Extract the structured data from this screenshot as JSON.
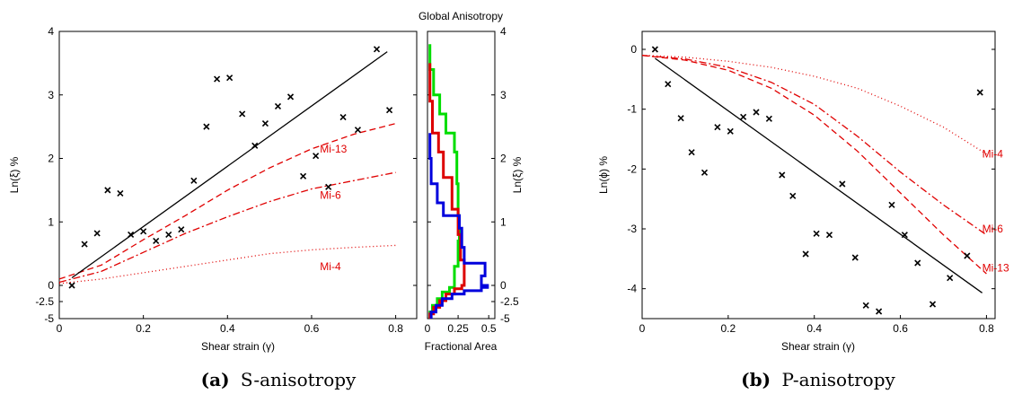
{
  "captions": {
    "a": {
      "letter": "(a)",
      "text": "S-anisotropy"
    },
    "b": {
      "letter": "(b)",
      "text": "P-anisotropy"
    }
  },
  "chart_data": [
    {
      "id": "s-anisotropy",
      "type": "scatter",
      "title": "",
      "xlabel": "Shear strain (γ)",
      "ylabel": "Ln(ξ) %",
      "xlim": [
        0,
        0.85
      ],
      "ylim_upper": [
        0,
        4
      ],
      "ylim_lower": [
        -5,
        -2.5
      ],
      "xticks": [
        0,
        0.2,
        0.4,
        0.6,
        0.8
      ],
      "xtick_labels": [
        "0",
        "0.2",
        "0.4",
        "0.6",
        "0.8"
      ],
      "yticks": [
        0,
        1,
        2,
        3,
        4
      ],
      "ytick_labels": [
        "0",
        "1",
        "2",
        "3",
        "4"
      ],
      "ylower_tick_labels": [
        "-2.5",
        "-5"
      ],
      "grid": false,
      "points": {
        "x": [
          0.03,
          0.06,
          0.09,
          0.115,
          0.145,
          0.17,
          0.2,
          0.23,
          0.26,
          0.29,
          0.32,
          0.35,
          0.375,
          0.405,
          0.435,
          0.465,
          0.49,
          0.52,
          0.55,
          0.58,
          0.61,
          0.64,
          0.675,
          0.71,
          0.755,
          0.785
        ],
        "y": [
          0.0,
          0.65,
          0.82,
          1.5,
          1.45,
          0.8,
          0.85,
          0.7,
          0.8,
          0.88,
          1.65,
          2.5,
          3.25,
          3.27,
          2.7,
          2.2,
          2.55,
          2.82,
          2.97,
          1.72,
          2.04,
          1.55,
          2.65,
          2.45,
          3.72,
          2.76
        ]
      },
      "fit_line": {
        "x": [
          0.03,
          0.78
        ],
        "y": [
          0.12,
          3.68
        ]
      },
      "series": [
        {
          "name": "Mi-13",
          "style": "dashed",
          "x": [
            0.0,
            0.1,
            0.2,
            0.3,
            0.4,
            0.5,
            0.6,
            0.7,
            0.8
          ],
          "y": [
            0.1,
            0.32,
            0.72,
            1.1,
            1.5,
            1.85,
            2.15,
            2.38,
            2.55
          ],
          "label_at": [
            0.62,
            2.15
          ]
        },
        {
          "name": "Mi-6",
          "style": "dashdot",
          "x": [
            0.0,
            0.1,
            0.2,
            0.3,
            0.4,
            0.5,
            0.6,
            0.7,
            0.8
          ],
          "y": [
            0.05,
            0.22,
            0.52,
            0.82,
            1.08,
            1.32,
            1.52,
            1.65,
            1.78
          ],
          "label_at": [
            0.62,
            1.42
          ]
        },
        {
          "name": "Mi-4",
          "style": "dotted",
          "x": [
            0.0,
            0.1,
            0.2,
            0.3,
            0.4,
            0.5,
            0.6,
            0.7,
            0.8
          ],
          "y": [
            0.03,
            0.1,
            0.2,
            0.3,
            0.4,
            0.5,
            0.56,
            0.6,
            0.63
          ],
          "label_at": [
            0.62,
            0.3
          ]
        }
      ]
    },
    {
      "id": "global-anisotropy",
      "type": "line",
      "title": "Global Anisotropy",
      "xlabel": "Fractional Area",
      "ylabel": "Ln(ξ) %",
      "xlim": [
        0,
        0.55
      ],
      "ylim_upper": [
        0,
        4
      ],
      "ylim_lower": [
        -5,
        -2.5
      ],
      "xticks": [
        0,
        0.25,
        0.5
      ],
      "xtick_labels": [
        "0",
        "0.25",
        "0.5"
      ],
      "yticks": [
        0,
        1,
        2,
        3,
        4
      ],
      "ytick_labels": [
        "0",
        "1",
        "2",
        "3",
        "4"
      ],
      "ylower_tick_labels": [
        "-2.5",
        "-5"
      ],
      "series": [
        {
          "color": "#00dd00",
          "points": [
            [
              0.02,
              3.8
            ],
            [
              0.02,
              3.4
            ],
            [
              0.05,
              3.4
            ],
            [
              0.05,
              3.0
            ],
            [
              0.1,
              3.0
            ],
            [
              0.1,
              2.7
            ],
            [
              0.15,
              2.7
            ],
            [
              0.15,
              2.4
            ],
            [
              0.22,
              2.4
            ],
            [
              0.22,
              2.1
            ],
            [
              0.24,
              2.1
            ],
            [
              0.24,
              1.6
            ],
            [
              0.25,
              1.6
            ],
            [
              0.25,
              1.1
            ],
            [
              0.26,
              1.1
            ],
            [
              0.26,
              0.7
            ],
            [
              0.25,
              0.7
            ],
            [
              0.25,
              0.3
            ],
            [
              0.22,
              0.3
            ],
            [
              0.22,
              -0.3
            ],
            [
              0.18,
              -0.3
            ],
            [
              0.18,
              -1.0
            ],
            [
              0.12,
              -1.0
            ],
            [
              0.12,
              -2.0
            ],
            [
              0.08,
              -2.0
            ],
            [
              0.08,
              -3.0
            ],
            [
              0.04,
              -3.0
            ],
            [
              0.04,
              -4.0
            ],
            [
              0.02,
              -4.0
            ],
            [
              0.02,
              -5.0
            ]
          ]
        },
        {
          "color": "#dd0000",
          "points": [
            [
              0.02,
              3.5
            ],
            [
              0.02,
              2.9
            ],
            [
              0.04,
              2.9
            ],
            [
              0.04,
              2.4
            ],
            [
              0.09,
              2.4
            ],
            [
              0.09,
              2.1
            ],
            [
              0.13,
              2.1
            ],
            [
              0.13,
              1.7
            ],
            [
              0.2,
              1.7
            ],
            [
              0.2,
              1.2
            ],
            [
              0.25,
              1.2
            ],
            [
              0.25,
              0.8
            ],
            [
              0.27,
              0.8
            ],
            [
              0.27,
              0.4
            ],
            [
              0.3,
              0.4
            ],
            [
              0.3,
              0.0
            ],
            [
              0.28,
              0.0
            ],
            [
              0.28,
              -0.5
            ],
            [
              0.22,
              -0.5
            ],
            [
              0.22,
              -1.3
            ],
            [
              0.15,
              -1.3
            ],
            [
              0.15,
              -2.3
            ],
            [
              0.1,
              -2.3
            ],
            [
              0.1,
              -3.3
            ],
            [
              0.05,
              -3.3
            ],
            [
              0.05,
              -4.3
            ],
            [
              0.02,
              -4.3
            ],
            [
              0.02,
              -5.0
            ]
          ]
        },
        {
          "color": "#0000dd",
          "points": [
            [
              0.02,
              2.4
            ],
            [
              0.02,
              2.0
            ],
            [
              0.03,
              2.0
            ],
            [
              0.03,
              1.6
            ],
            [
              0.08,
              1.6
            ],
            [
              0.08,
              1.3
            ],
            [
              0.13,
              1.3
            ],
            [
              0.13,
              1.1
            ],
            [
              0.26,
              1.1
            ],
            [
              0.26,
              0.9
            ],
            [
              0.28,
              0.9
            ],
            [
              0.28,
              0.6
            ],
            [
              0.3,
              0.6
            ],
            [
              0.3,
              0.35
            ],
            [
              0.47,
              0.35
            ],
            [
              0.47,
              0.15
            ],
            [
              0.44,
              0.15
            ],
            [
              0.44,
              0.0
            ],
            [
              0.49,
              0.0
            ],
            [
              0.49,
              -0.3
            ],
            [
              0.44,
              -0.3
            ],
            [
              0.44,
              -0.8
            ],
            [
              0.3,
              -0.8
            ],
            [
              0.3,
              -1.3
            ],
            [
              0.2,
              -1.3
            ],
            [
              0.2,
              -2.0
            ],
            [
              0.12,
              -2.0
            ],
            [
              0.12,
              -3.0
            ],
            [
              0.07,
              -3.0
            ],
            [
              0.07,
              -4.0
            ],
            [
              0.03,
              -4.0
            ],
            [
              0.03,
              -5.0
            ]
          ]
        }
      ]
    },
    {
      "id": "p-anisotropy",
      "type": "scatter",
      "title": "",
      "xlabel": "Shear strain (γ)",
      "ylabel": "Ln(ϕ) %",
      "xlim": [
        0,
        0.82
      ],
      "ylim": [
        -4.5,
        0.3
      ],
      "xticks": [
        0,
        0.2,
        0.4,
        0.6,
        0.8
      ],
      "xtick_labels": [
        "0",
        "0.2",
        "0.4",
        "0.6",
        "0.8"
      ],
      "yticks": [
        0,
        -1,
        -2,
        -3,
        -4
      ],
      "ytick_labels": [
        "0",
        "-1",
        "-2",
        "-3",
        "-4"
      ],
      "grid": false,
      "points": {
        "x": [
          0.03,
          0.06,
          0.09,
          0.115,
          0.145,
          0.175,
          0.205,
          0.235,
          0.265,
          0.295,
          0.325,
          0.35,
          0.38,
          0.405,
          0.435,
          0.465,
          0.495,
          0.52,
          0.55,
          0.58,
          0.61,
          0.64,
          0.675,
          0.715,
          0.755,
          0.785
        ],
        "y": [
          0.0,
          -0.58,
          -1.15,
          -1.72,
          -2.06,
          -1.3,
          -1.37,
          -1.13,
          -1.05,
          -1.16,
          -2.1,
          -2.45,
          -3.42,
          -3.08,
          -3.1,
          -2.25,
          -3.48,
          -4.28,
          -4.38,
          -2.6,
          -3.1,
          -3.57,
          -4.26,
          -3.82,
          -3.45,
          -0.72
        ]
      },
      "fit_line": {
        "x": [
          0.03,
          0.79
        ],
        "y": [
          -0.15,
          -4.07
        ]
      },
      "series": [
        {
          "name": "Mi-4",
          "style": "dotted",
          "x": [
            0.0,
            0.1,
            0.2,
            0.3,
            0.4,
            0.5,
            0.6,
            0.7,
            0.8
          ],
          "y": [
            -0.1,
            -0.13,
            -0.2,
            -0.3,
            -0.45,
            -0.65,
            -0.95,
            -1.3,
            -1.75
          ],
          "label_at": [
            0.79,
            -1.75
          ]
        },
        {
          "name": "Mi-6",
          "style": "dashdot",
          "x": [
            0.0,
            0.1,
            0.2,
            0.3,
            0.4,
            0.5,
            0.6,
            0.7,
            0.8
          ],
          "y": [
            -0.1,
            -0.16,
            -0.3,
            -0.55,
            -0.92,
            -1.45,
            -2.05,
            -2.6,
            -3.1
          ],
          "label_at": [
            0.79,
            -3.0
          ]
        },
        {
          "name": "Mi-13",
          "style": "dashed",
          "x": [
            0.0,
            0.1,
            0.2,
            0.3,
            0.4,
            0.5,
            0.6,
            0.7,
            0.8
          ],
          "y": [
            -0.1,
            -0.18,
            -0.35,
            -0.65,
            -1.1,
            -1.7,
            -2.4,
            -3.1,
            -3.75
          ],
          "label_at": [
            0.79,
            -3.65
          ]
        }
      ]
    }
  ]
}
